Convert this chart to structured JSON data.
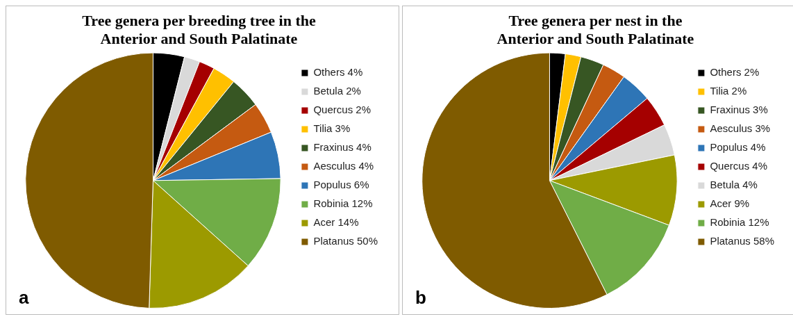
{
  "chart_data": [
    {
      "type": "pie",
      "title": "Tree genera per breeding tree in the\nAnterior and South Palatinate",
      "categories": [
        "Others 4%",
        "Betula 2%",
        "Quercus 2%",
        "Tilia 3%",
        "Fraxinus 4%",
        "Aesculus 4%",
        "Populus 6%",
        "Robinia 12%",
        "Acer 14%",
        "Platanus 50%"
      ],
      "values": [
        4,
        2,
        2,
        3,
        4,
        4,
        6,
        12,
        14,
        50
      ],
      "colors": [
        "#000000",
        "#d9d9d9",
        "#a50000",
        "#ffc000",
        "#375623",
        "#c55a11",
        "#2e75b6",
        "#70ad47",
        "#9c9a00",
        "#7f5b00"
      ],
      "legend": "right",
      "annotations": [
        "a"
      ]
    },
    {
      "type": "pie",
      "title": "Tree genera per nest in the\nAnterior and South Palatinate",
      "categories": [
        "Others 2%",
        "Tilia 2%",
        "Fraxinus 3%",
        "Aesculus 3%",
        "Populus 4%",
        "Quercus 4%",
        "Betula 4%",
        "Acer 9%",
        "Robinia 12%",
        "Platanus 58%"
      ],
      "values": [
        2,
        2,
        3,
        3,
        4,
        4,
        4,
        9,
        12,
        58
      ],
      "colors": [
        "#000000",
        "#ffc000",
        "#375623",
        "#c55a11",
        "#2e75b6",
        "#a50000",
        "#d9d9d9",
        "#9c9a00",
        "#70ad47",
        "#7f5b00"
      ],
      "legend": "right",
      "annotations": [
        "b"
      ]
    }
  ]
}
